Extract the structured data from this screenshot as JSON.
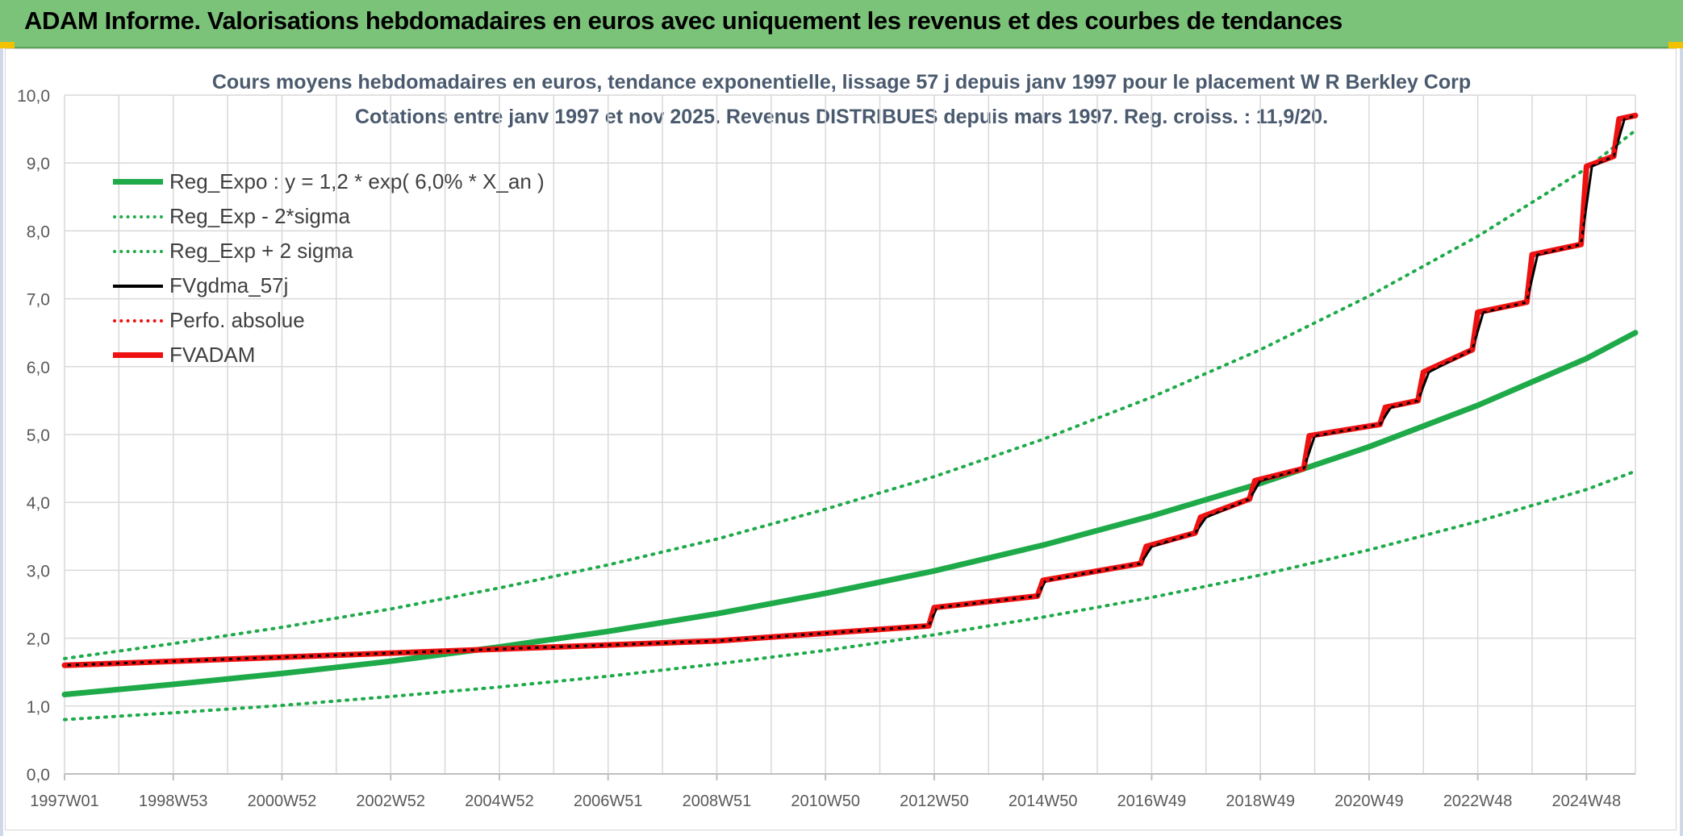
{
  "header": {
    "title": "ADAM Informe. Valorisations hebdomadaires en euros avec uniquement les revenus et des courbes de tendances"
  },
  "colors": {
    "banner": "#7cc37a",
    "regression": "#1faa4a",
    "gdma": "#000000",
    "adam": "#ee1111",
    "perfo": "#ee1111",
    "grid": "#d9d9d9"
  },
  "chart_data": {
    "type": "line",
    "title": "Cours moyens hebdomadaires en euros, tendance exponentielle, lissage 57 j depuis janv 1997 pour le placement W R Berkley Corp",
    "subtitle": "Cotations entre janv 1997 et nov 2025. Revenus DISTRIBUES depuis mars 1997. Reg. croiss. : 11,9/20.",
    "xlabel": "",
    "ylabel": "",
    "ylim": [
      0,
      10
    ],
    "yticks": [
      "0,0",
      "1,0",
      "2,0",
      "3,0",
      "4,0",
      "5,0",
      "6,0",
      "7,0",
      "8,0",
      "9,0",
      "10,0"
    ],
    "xlim": [
      1997.0,
      2025.9
    ],
    "xticks": [
      {
        "label": "1997W01",
        "x": 1997.0
      },
      {
        "label": "1998W53",
        "x": 1999.0
      },
      {
        "label": "2000W52",
        "x": 2001.0
      },
      {
        "label": "2002W52",
        "x": 2003.0
      },
      {
        "label": "2004W52",
        "x": 2005.0
      },
      {
        "label": "2006W51",
        "x": 2007.0
      },
      {
        "label": "2008W51",
        "x": 2009.0
      },
      {
        "label": "2010W50",
        "x": 2011.0
      },
      {
        "label": "2012W50",
        "x": 2013.0
      },
      {
        "label": "2014W50",
        "x": 2015.0
      },
      {
        "label": "2016W49",
        "x": 2017.0
      },
      {
        "label": "2018W49",
        "x": 2019.0
      },
      {
        "label": "2020W49",
        "x": 2021.0
      },
      {
        "label": "2022W48",
        "x": 2023.0
      },
      {
        "label": "2024W48",
        "x": 2025.0
      }
    ],
    "grid": true,
    "legend_position": "top-left",
    "series": [
      {
        "name": "Reg_Expo : y = 1,2 * exp( 6,0% *  X_an )",
        "style": "solid-thick",
        "color": "#1faa4a",
        "x": [
          1997.0,
          1999.0,
          2001.0,
          2003.0,
          2005.0,
          2007.0,
          2009.0,
          2011.0,
          2013.0,
          2015.0,
          2017.0,
          2019.0,
          2021.0,
          2023.0,
          2025.0,
          2025.9
        ],
        "y": [
          1.17,
          1.32,
          1.48,
          1.66,
          1.87,
          2.1,
          2.36,
          2.66,
          2.99,
          3.37,
          3.8,
          4.28,
          4.82,
          5.43,
          6.12,
          6.5
        ]
      },
      {
        "name": "Reg_Exp - 2*sigma",
        "style": "dotted",
        "color": "#1faa4a",
        "x": [
          1997.0,
          1999.0,
          2001.0,
          2003.0,
          2005.0,
          2007.0,
          2009.0,
          2011.0,
          2013.0,
          2015.0,
          2017.0,
          2019.0,
          2021.0,
          2023.0,
          2025.0,
          2025.9
        ],
        "y": [
          0.8,
          0.9,
          1.01,
          1.14,
          1.28,
          1.44,
          1.62,
          1.82,
          2.05,
          2.31,
          2.6,
          2.93,
          3.3,
          3.72,
          4.19,
          4.46
        ]
      },
      {
        "name": "Reg_Exp + 2 sigma",
        "style": "dotted",
        "color": "#1faa4a",
        "x": [
          1997.0,
          1999.0,
          2001.0,
          2003.0,
          2005.0,
          2007.0,
          2009.0,
          2011.0,
          2013.0,
          2015.0,
          2017.0,
          2019.0,
          2021.0,
          2023.0,
          2025.0,
          2025.9
        ],
        "y": [
          1.7,
          1.92,
          2.16,
          2.43,
          2.74,
          3.08,
          3.46,
          3.9,
          4.38,
          4.93,
          5.55,
          6.25,
          7.04,
          7.92,
          8.92,
          9.48
        ]
      },
      {
        "name": "FVgdma_57j",
        "style": "solid-thin",
        "color": "#000000",
        "x": [
          1997.0,
          2001.0,
          2005.0,
          2009.0,
          2012.9,
          2013.05,
          2014.9,
          2015.05,
          2016.8,
          2017.0,
          2017.8,
          2018.0,
          2018.8,
          2019.0,
          2019.8,
          2020.0,
          2021.2,
          2021.4,
          2021.9,
          2022.1,
          2022.9,
          2023.1,
          2023.9,
          2024.1,
          2024.9,
          2025.1,
          2025.5,
          2025.7,
          2025.9
        ],
        "y": [
          1.6,
          1.72,
          1.84,
          1.96,
          2.18,
          2.45,
          2.62,
          2.85,
          3.1,
          3.35,
          3.55,
          3.78,
          4.05,
          4.32,
          4.5,
          4.98,
          5.15,
          5.4,
          5.5,
          5.92,
          6.25,
          6.8,
          6.95,
          7.65,
          7.8,
          8.95,
          9.1,
          9.65,
          9.7
        ]
      },
      {
        "name": "Perfo. absolue",
        "style": "dotted",
        "color": "#ee1111",
        "x": [
          1997.0,
          2001.0,
          2005.0,
          2009.0,
          2012.9,
          2013.0,
          2014.9,
          2015.0,
          2016.8,
          2016.9,
          2017.8,
          2017.9,
          2018.8,
          2018.9,
          2019.8,
          2019.9,
          2021.2,
          2021.3,
          2021.9,
          2022.0,
          2022.9,
          2023.0,
          2023.9,
          2024.0,
          2024.9,
          2025.0,
          2025.5,
          2025.6,
          2025.9
        ],
        "y": [
          1.6,
          1.72,
          1.84,
          1.96,
          2.18,
          2.45,
          2.62,
          2.85,
          3.1,
          3.35,
          3.55,
          3.78,
          4.05,
          4.32,
          4.5,
          4.98,
          5.15,
          5.4,
          5.5,
          5.92,
          6.25,
          6.8,
          6.95,
          7.65,
          7.8,
          8.95,
          9.1,
          9.65,
          9.7
        ]
      },
      {
        "name": "FVADAM",
        "style": "solid-thick",
        "color": "#ee1111",
        "x": [
          1997.0,
          2001.0,
          2005.0,
          2009.0,
          2012.9,
          2013.0,
          2014.9,
          2015.0,
          2016.8,
          2016.9,
          2017.8,
          2017.9,
          2018.8,
          2018.9,
          2019.8,
          2019.9,
          2021.2,
          2021.3,
          2021.9,
          2022.0,
          2022.9,
          2023.0,
          2023.9,
          2024.0,
          2024.9,
          2025.0,
          2025.5,
          2025.6,
          2025.9
        ],
        "y": [
          1.6,
          1.72,
          1.84,
          1.96,
          2.18,
          2.45,
          2.62,
          2.85,
          3.1,
          3.35,
          3.55,
          3.78,
          4.05,
          4.32,
          4.5,
          4.98,
          5.15,
          5.4,
          5.5,
          5.92,
          6.25,
          6.8,
          6.95,
          7.65,
          7.8,
          8.95,
          9.1,
          9.65,
          9.7
        ]
      }
    ]
  }
}
